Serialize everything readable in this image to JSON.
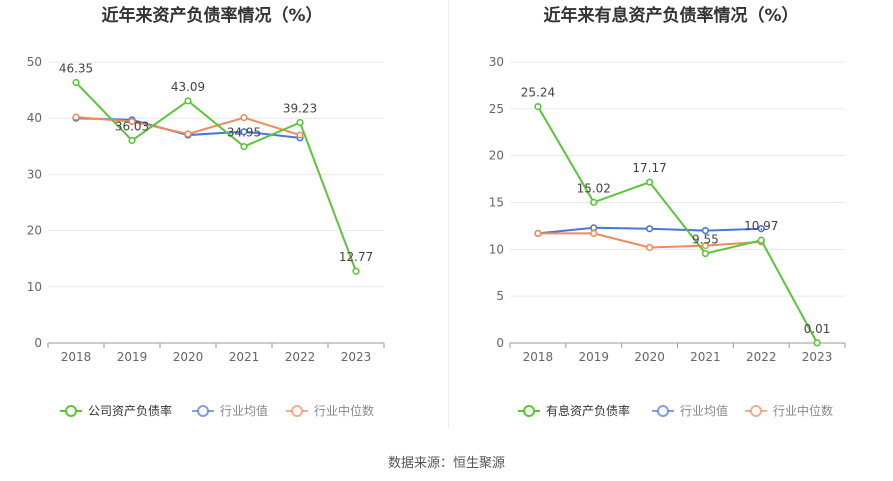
{
  "source_text": "数据来源：恒生聚源",
  "chart_data": [
    {
      "type": "line",
      "title": "近年来资产负债率情况（%）",
      "categories": [
        "2018",
        "2019",
        "2020",
        "2021",
        "2022",
        "2023"
      ],
      "ylim": [
        0,
        50
      ],
      "yticks": [
        0,
        10,
        20,
        30,
        40,
        50
      ],
      "grid": true,
      "legend_position": "bottom",
      "series": [
        {
          "name": "公司资产负债率",
          "color": "#5ac53a",
          "values": [
            46.35,
            36.03,
            43.09,
            34.95,
            39.23,
            12.77
          ],
          "labels": [
            "46.35",
            "36.03",
            "43.09",
            "34.95",
            "39.23",
            "12.77"
          ]
        },
        {
          "name": "行业均值",
          "color": "#4a76d8",
          "values": [
            40.0,
            39.7,
            37.0,
            37.6,
            36.5,
            null
          ]
        },
        {
          "name": "行业中位数",
          "color": "#f08b5e",
          "values": [
            40.2,
            39.4,
            37.2,
            40.1,
            37.0,
            null
          ]
        }
      ]
    },
    {
      "type": "line",
      "title": "近年来有息资产负债率情况（%）",
      "categories": [
        "2018",
        "2019",
        "2020",
        "2021",
        "2022",
        "2023"
      ],
      "ylim": [
        0,
        30
      ],
      "yticks": [
        0,
        5,
        10,
        15,
        20,
        25,
        30
      ],
      "grid": true,
      "legend_position": "bottom",
      "series": [
        {
          "name": "有息资产负债率",
          "color": "#5ac53a",
          "values": [
            25.24,
            15.02,
            17.17,
            9.55,
            10.97,
            0.01
          ],
          "labels": [
            "25.24",
            "15.02",
            "17.17",
            "9.55",
            "10.97",
            "0.01"
          ]
        },
        {
          "name": "行业均值",
          "color": "#4a76d8",
          "values": [
            11.7,
            12.3,
            12.2,
            12.0,
            12.2,
            null
          ]
        },
        {
          "name": "行业中位数",
          "color": "#f08b5e",
          "values": [
            11.7,
            11.7,
            10.2,
            10.4,
            10.8,
            null
          ]
        }
      ]
    }
  ]
}
